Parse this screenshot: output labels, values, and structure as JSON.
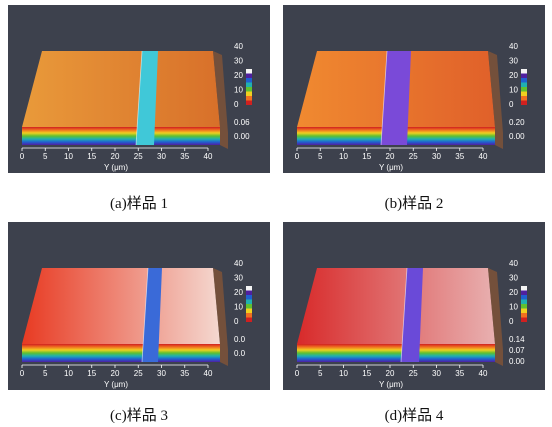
{
  "panels": [
    {
      "caption": "(a)样品 1",
      "x_axis_label": "Y (μm)",
      "x_labels": [
        "0",
        "5",
        "10",
        "15",
        "20",
        "25",
        "30",
        "35",
        "40"
      ],
      "z_labels": [
        "40",
        "30",
        "20",
        "10",
        "0",
        "0.06",
        "0.00"
      ]
    },
    {
      "caption": "(b)样品 2",
      "x_axis_label": "Y (μm)",
      "x_labels": [
        "0",
        "5",
        "10",
        "15",
        "20",
        "25",
        "30",
        "35",
        "40"
      ],
      "z_labels": [
        "40",
        "30",
        "20",
        "10",
        "0",
        "0.20",
        "0.00"
      ]
    },
    {
      "caption": "(c)样品 3",
      "x_axis_label": "Y (μm)",
      "x_labels": [
        "0",
        "5",
        "10",
        "15",
        "20",
        "25",
        "30",
        "35",
        "40"
      ],
      "z_labels": [
        "40",
        "30",
        "20",
        "10",
        "0",
        "0.0",
        "0.0"
      ]
    },
    {
      "caption": "(d)样品 4",
      "x_axis_label": "Y (μm)",
      "x_labels": [
        "0",
        "5",
        "10",
        "15",
        "20",
        "25",
        "30",
        "35",
        "40"
      ],
      "z_labels": [
        "40",
        "30",
        "20",
        "10",
        "0",
        "0.14",
        "0.07",
        "0.00"
      ]
    }
  ]
}
